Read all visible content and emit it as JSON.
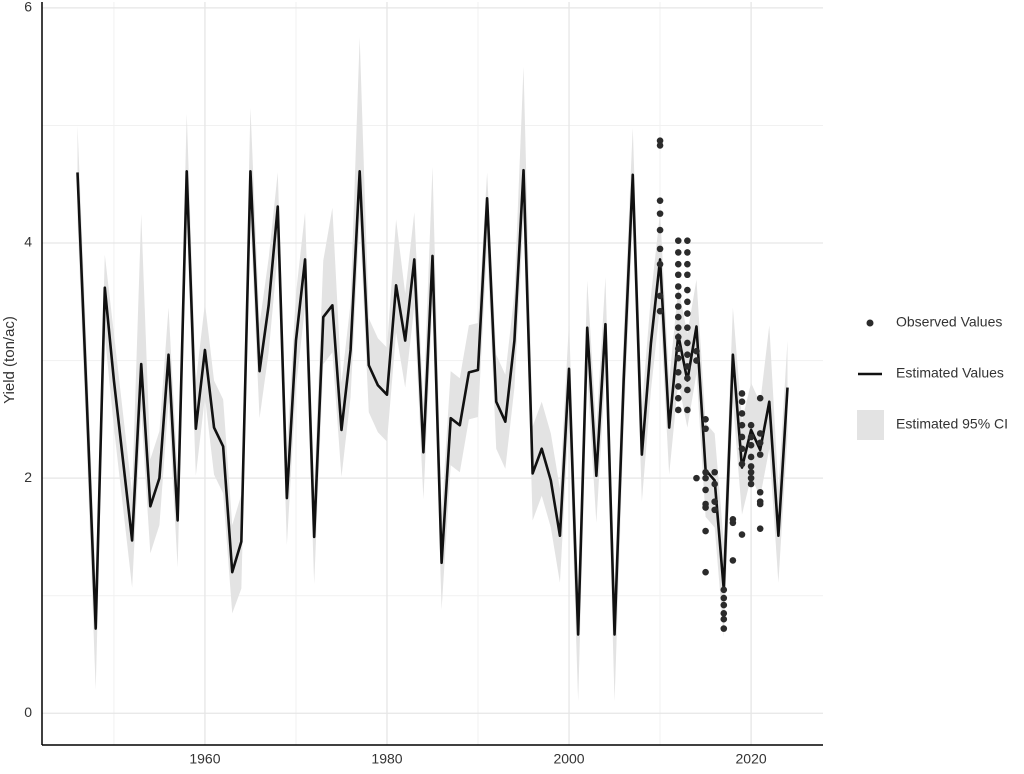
{
  "chart_data": {
    "type": "line",
    "y_label": "Yield (ton/ac)",
    "x": [
      1946,
      1947,
      1948,
      1949,
      1950,
      1951,
      1952,
      1953,
      1954,
      1955,
      1956,
      1957,
      1958,
      1959,
      1960,
      1961,
      1962,
      1963,
      1964,
      1965,
      1966,
      1967,
      1968,
      1969,
      1970,
      1971,
      1972,
      1973,
      1974,
      1975,
      1976,
      1977,
      1978,
      1979,
      1980,
      1981,
      1982,
      1983,
      1984,
      1985,
      1986,
      1987,
      1988,
      1989,
      1990,
      1991,
      1992,
      1993,
      1994,
      1995,
      1996,
      1997,
      1998,
      1999,
      2000,
      2001,
      2002,
      2003,
      2004,
      2005,
      2006,
      2007,
      2008,
      2009,
      2010,
      2011,
      2012,
      2013,
      2014,
      2015,
      2016,
      2017,
      2018,
      2019,
      2020,
      2021,
      2022,
      2023,
      2024
    ],
    "series": [
      {
        "name": "Estimated Values",
        "color": "#111111",
        "values": [
          4.6,
          2.7,
          0.72,
          3.62,
          2.83,
          2.15,
          1.47,
          2.97,
          1.76,
          2.0,
          3.05,
          1.64,
          4.61,
          2.42,
          3.09,
          2.43,
          2.27,
          1.2,
          1.46,
          4.61,
          2.91,
          3.47,
          4.31,
          1.83,
          3.17,
          3.86,
          1.5,
          3.37,
          3.47,
          2.41,
          3.09,
          4.61,
          2.96,
          2.79,
          2.71,
          3.64,
          3.17,
          3.86,
          2.22,
          3.89,
          1.28,
          2.51,
          2.45,
          2.9,
          2.92,
          4.38,
          2.65,
          2.48,
          3.17,
          4.62,
          2.04,
          2.25,
          1.98,
          1.51,
          2.93,
          0.67,
          3.28,
          2.02,
          3.31,
          0.67,
          2.83,
          4.58,
          2.2,
          3.15,
          3.86,
          2.43,
          3.22,
          2.83,
          3.29,
          2.07,
          1.98,
          1.05,
          3.05,
          2.09,
          2.41,
          2.24,
          2.65,
          1.51,
          2.77
        ]
      }
    ],
    "band": {
      "name": "Estimated 95% CI",
      "color": "#e3e3e3",
      "upper": [
        5.0,
        3.1,
        1.12,
        3.9,
        3.23,
        2.55,
        1.87,
        4.25,
        2.16,
        2.4,
        3.45,
        2.04,
        5.1,
        2.82,
        3.49,
        2.83,
        2.67,
        1.6,
        1.86,
        5.15,
        3.31,
        3.87,
        4.6,
        2.23,
        3.57,
        4.26,
        1.9,
        3.85,
        4.3,
        2.81,
        3.49,
        5.75,
        3.36,
        3.19,
        3.11,
        4.2,
        3.57,
        4.26,
        2.62,
        4.65,
        1.68,
        2.91,
        2.85,
        3.3,
        3.32,
        4.6,
        3.05,
        2.88,
        3.57,
        5.5,
        2.44,
        2.65,
        2.38,
        1.91,
        3.33,
        1.07,
        3.68,
        2.42,
        3.71,
        1.07,
        3.23,
        4.98,
        2.6,
        3.55,
        4.26,
        2.83,
        3.62,
        3.23,
        3.69,
        2.47,
        2.38,
        1.45,
        3.45,
        2.49,
        2.81,
        2.64,
        3.3,
        1.91,
        3.17
      ],
      "lower": [
        4.2,
        2.3,
        0.2,
        3.22,
        2.43,
        1.75,
        1.07,
        2.57,
        1.36,
        1.6,
        2.65,
        1.24,
        4.21,
        2.02,
        2.69,
        2.03,
        1.87,
        0.85,
        1.06,
        4.21,
        2.51,
        3.07,
        3.91,
        1.43,
        2.77,
        3.46,
        1.1,
        2.97,
        3.07,
        2.01,
        2.69,
        4.21,
        2.56,
        2.39,
        2.31,
        3.24,
        2.77,
        3.46,
        1.82,
        3.49,
        0.88,
        2.11,
        2.05,
        2.5,
        2.52,
        3.98,
        2.25,
        2.08,
        2.77,
        4.22,
        1.64,
        1.85,
        1.58,
        1.11,
        2.53,
        0.1,
        2.88,
        1.62,
        2.91,
        0.1,
        2.43,
        4.18,
        1.8,
        2.75,
        3.46,
        2.03,
        2.82,
        2.43,
        2.89,
        1.67,
        1.58,
        0.65,
        2.65,
        1.69,
        2.01,
        1.84,
        2.25,
        1.11,
        2.37
      ]
    },
    "observed": {
      "name": "Observed Values",
      "color": "#2b2b2b",
      "x": [
        2010,
        2010,
        2010,
        2010,
        2010,
        2010,
        2010,
        2010,
        2010,
        2012,
        2012,
        2012,
        2012,
        2012,
        2012,
        2012,
        2012,
        2012,
        2012,
        2012,
        2012,
        2012,
        2012,
        2012,
        2012,
        2013,
        2013,
        2013,
        2013,
        2013,
        2013,
        2013,
        2013,
        2013,
        2013,
        2013,
        2013,
        2013,
        2013,
        2014,
        2014,
        2014,
        2015,
        2015,
        2015,
        2015,
        2015,
        2015,
        2015,
        2015,
        2015,
        2016,
        2016,
        2016,
        2016,
        2017,
        2017,
        2017,
        2017,
        2017,
        2017,
        2018,
        2018,
        2018,
        2019,
        2019,
        2019,
        2019,
        2019,
        2019,
        2019,
        2019,
        2020,
        2020,
        2020,
        2020,
        2020,
        2020,
        2020,
        2020,
        2021,
        2021,
        2021,
        2021,
        2021,
        2021,
        2021,
        2021
      ],
      "y": [
        4.87,
        4.83,
        4.36,
        4.25,
        4.11,
        3.95,
        3.82,
        3.55,
        3.42,
        4.02,
        3.92,
        3.82,
        3.73,
        3.63,
        3.55,
        3.46,
        3.37,
        3.28,
        3.2,
        3.1,
        3.02,
        2.9,
        2.78,
        2.68,
        2.58,
        4.02,
        3.92,
        3.82,
        3.73,
        3.6,
        3.5,
        3.4,
        3.28,
        3.15,
        3.05,
        2.95,
        2.85,
        2.75,
        2.58,
        3.08,
        3.0,
        2.0,
        2.5,
        2.42,
        2.05,
        2.0,
        1.9,
        1.78,
        1.75,
        1.55,
        1.2,
        2.05,
        1.95,
        1.8,
        1.73,
        1.05,
        0.98,
        0.92,
        0.85,
        0.8,
        0.72,
        1.65,
        1.62,
        1.3,
        2.72,
        2.65,
        2.55,
        2.45,
        2.35,
        2.25,
        2.12,
        1.52,
        2.45,
        2.35,
        2.28,
        2.18,
        2.1,
        2.05,
        2.0,
        1.95,
        2.68,
        2.38,
        2.3,
        2.2,
        1.88,
        1.8,
        1.78,
        1.57
      ]
    },
    "xlim": [
      1942.1,
      2027.9
    ],
    "ylim": [
      -0.27,
      6.05
    ],
    "xticks": [
      1960,
      1980,
      2000,
      2020
    ],
    "yticks": [
      0,
      2,
      4,
      6
    ],
    "x_minor_grid": [
      1950,
      1970,
      1990,
      2010
    ],
    "y_minor_grid": [
      1,
      3,
      5
    ],
    "grid": true,
    "legend": "right"
  }
}
